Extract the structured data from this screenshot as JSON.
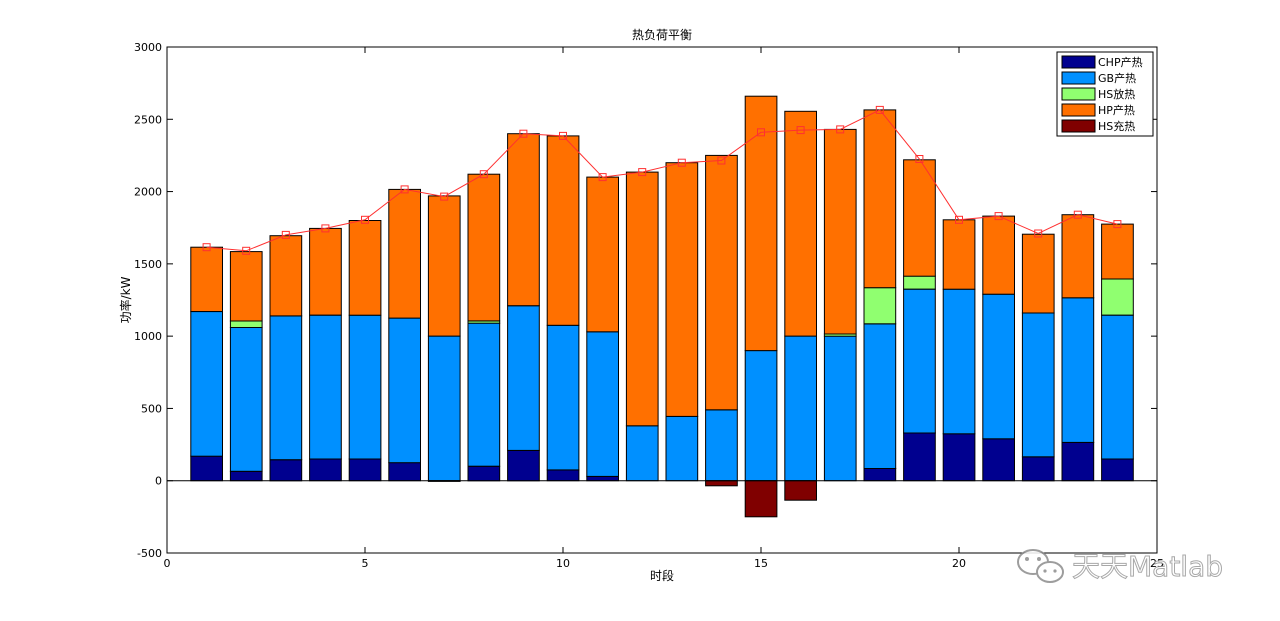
{
  "chart_data": {
    "type": "bar",
    "title": "热负荷平衡",
    "xlabel": "时段",
    "ylabel": "功率/kW",
    "xlim": [
      0,
      25
    ],
    "ylim": [
      -500,
      3000
    ],
    "xticks": [
      0,
      5,
      10,
      15,
      20,
      25
    ],
    "yticks": [
      -500,
      0,
      500,
      1000,
      1500,
      2000,
      2500,
      3000
    ],
    "grid": false,
    "legend_position": "top-right",
    "categories": [
      1,
      2,
      3,
      4,
      5,
      6,
      7,
      8,
      9,
      10,
      11,
      12,
      13,
      14,
      15,
      16,
      17,
      18,
      19,
      20,
      21,
      22,
      23,
      24
    ],
    "series": [
      {
        "name": "CHP产热",
        "color": "#00008f",
        "values": [
          170,
          65,
          145,
          150,
          150,
          125,
          0,
          100,
          210,
          75,
          30,
          0,
          0,
          0,
          0,
          0,
          0,
          85,
          330,
          325,
          290,
          165,
          265,
          150
        ]
      },
      {
        "name": "GB产热",
        "color": "#0090ff",
        "values": [
          1000,
          995,
          995,
          995,
          995,
          1000,
          1000,
          990,
          1000,
          1000,
          1000,
          380,
          445,
          490,
          900,
          1000,
          1000,
          1000,
          995,
          1000,
          1000,
          995,
          1000,
          995
        ]
      },
      {
        "name": "HS放热",
        "color": "#90ff70",
        "values": [
          0,
          45,
          0,
          0,
          0,
          0,
          0,
          15,
          0,
          0,
          0,
          0,
          0,
          0,
          0,
          0,
          15,
          250,
          90,
          0,
          0,
          0,
          0,
          250
        ]
      },
      {
        "name": "HP产热",
        "color": "#ff7000",
        "values": [
          445,
          480,
          555,
          600,
          655,
          890,
          970,
          1015,
          1190,
          1310,
          1070,
          1755,
          1755,
          1760,
          1760,
          1555,
          1415,
          1230,
          805,
          480,
          540,
          545,
          575,
          380
        ]
      },
      {
        "name": "HS充热",
        "color": "#800000",
        "values": [
          0,
          0,
          0,
          0,
          0,
          0,
          -5,
          0,
          0,
          0,
          0,
          0,
          0,
          -35,
          -250,
          -135,
          0,
          0,
          0,
          0,
          0,
          0,
          0,
          0
        ]
      }
    ],
    "load_line": {
      "color": "#ff3030",
      "values": [
        1615,
        1590,
        1700,
        1745,
        1805,
        2015,
        1965,
        2120,
        2400,
        2385,
        2100,
        2135,
        2200,
        2215,
        2410,
        2425,
        2430,
        2565,
        2225,
        1805,
        1830,
        1710,
        1840,
        1775
      ]
    }
  },
  "watermark": {
    "text": "天天Matlab",
    "icon": "wechat-logo-icon"
  }
}
